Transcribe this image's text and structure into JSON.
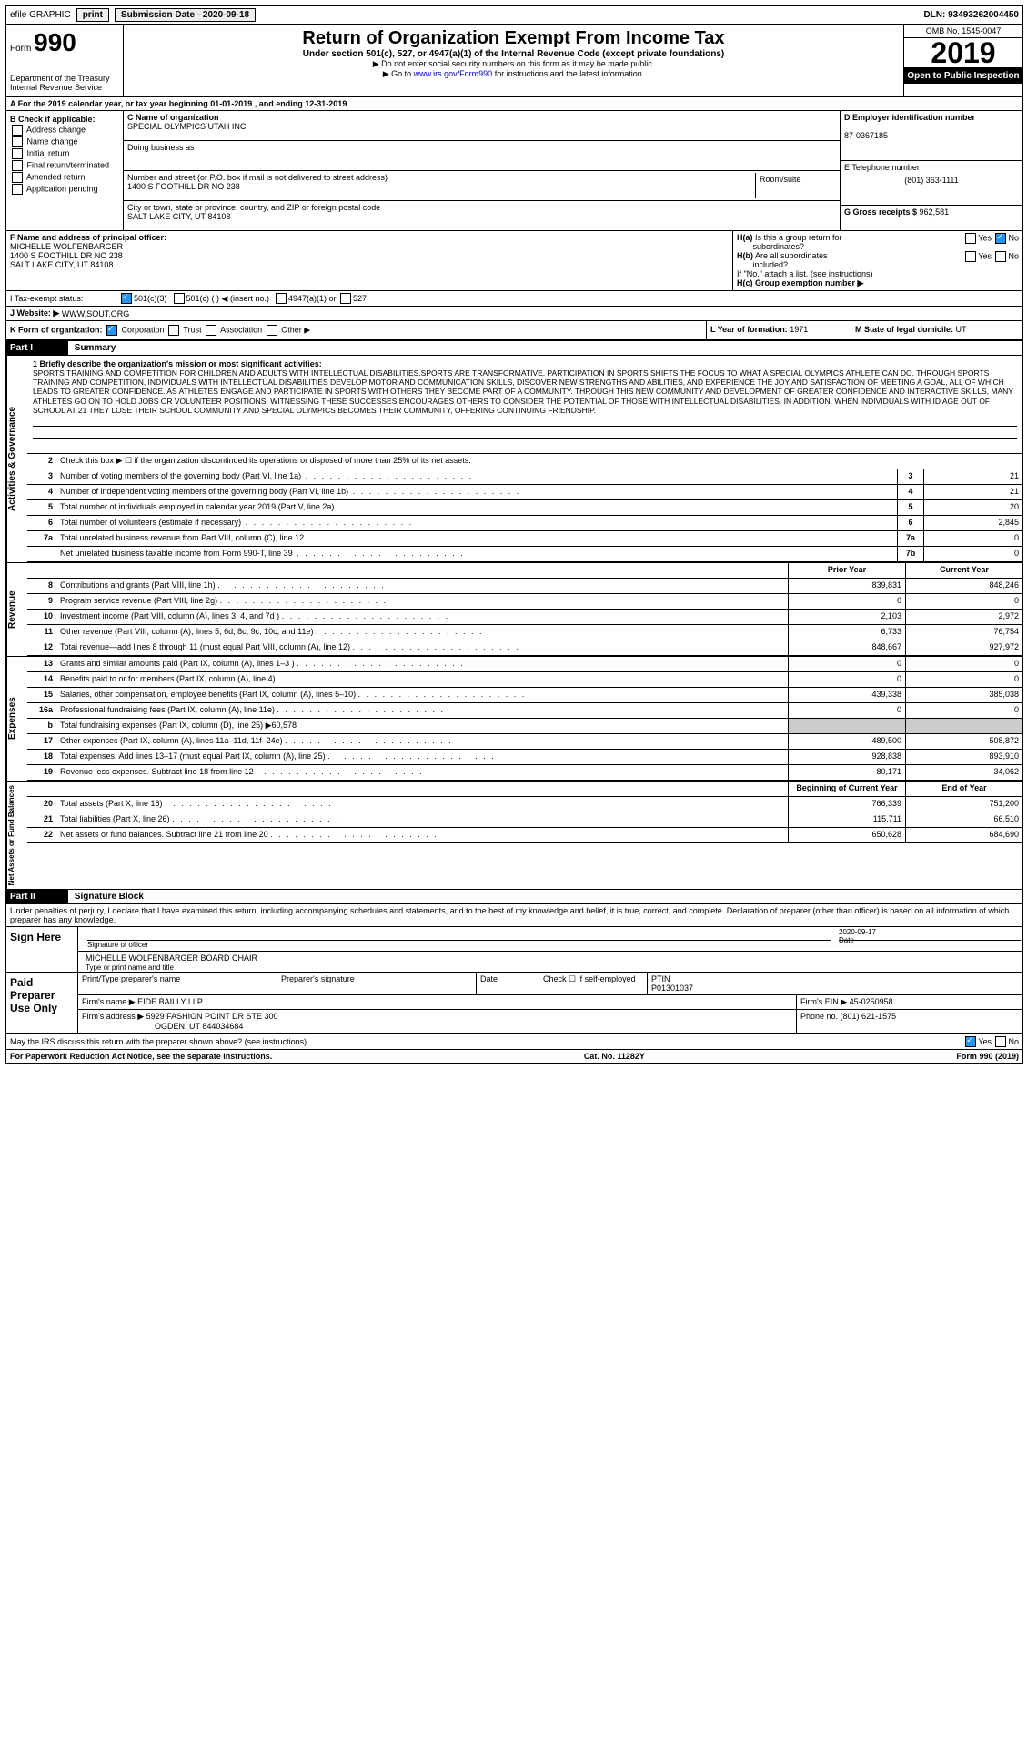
{
  "topbar": {
    "efile": "efile GRAPHIC",
    "print": "print",
    "sub_label": "Submission Date - ",
    "sub_date": "2020-09-18",
    "dln_label": "DLN: ",
    "dln": "93493262004450"
  },
  "header": {
    "form_prefix": "Form",
    "form_no": "990",
    "dept": "Department of the Treasury",
    "irs": "Internal Revenue Service",
    "title": "Return of Organization Exempt From Income Tax",
    "subtitle": "Under section 501(c), 527, or 4947(a)(1) of the Internal Revenue Code (except private foundations)",
    "note1": "▶ Do not enter social security numbers on this form as it may be made public.",
    "note2": "▶ Go to www.irs.gov/Form990 for instructions and the latest information.",
    "link": "www.irs.gov/Form990",
    "omb": "OMB No. 1545-0047",
    "year": "2019",
    "open": "Open to Public Inspection"
  },
  "section_a": "A For the 2019 calendar year, or tax year beginning 01-01-2019 , and ending 12-31-2019",
  "box_b": {
    "label": "B Check if applicable:",
    "items": [
      "Address change",
      "Name change",
      "Initial return",
      "Final return/terminated",
      "Amended return",
      "Application pending"
    ]
  },
  "box_c": {
    "name_label": "C Name of organization",
    "name": "SPECIAL OLYMPICS UTAH INC",
    "dba_label": "Doing business as",
    "addr_label": "Number and street (or P.O. box if mail is not delivered to street address)",
    "addr": "1400 S FOOTHILL DR NO 238",
    "room_label": "Room/suite",
    "city_label": "City or town, state or province, country, and ZIP or foreign postal code",
    "city": "SALT LAKE CITY, UT  84108"
  },
  "box_d": {
    "ein_label": "D Employer identification number",
    "ein": "87-0367185"
  },
  "box_e": {
    "tel_label": "E Telephone number",
    "tel": "(801) 363-1111"
  },
  "box_g": {
    "label": "G Gross receipts $ ",
    "value": "962,581"
  },
  "box_f": {
    "label": "F Name and address of principal officer:",
    "name": "MICHELLE WOLFENBARGER",
    "addr1": "1400 S FOOTHILL DR NO 238",
    "addr2": "SALT LAKE CITY, UT  84108"
  },
  "box_h": {
    "ha_label": "H(a) Is this a group return for subordinates?",
    "hb_label": "H(b) Are all subordinates included?",
    "h_note": "If \"No,\" attach a list. (see instructions)",
    "hc_label": "H(c) Group exemption number ▶",
    "yes": "Yes",
    "no": "No"
  },
  "row_i": {
    "label": "I Tax-exempt status:",
    "opt1": "501(c)(3)",
    "opt2": "501(c) (  ) ◀ (insert no.)",
    "opt3": "4947(a)(1) or",
    "opt4": "527"
  },
  "row_j": {
    "label": "J Website: ▶",
    "value": "WWW.SOUT.ORG"
  },
  "row_k": {
    "label": "K Form of organization:",
    "corp": "Corporation",
    "trust": "Trust",
    "assoc": "Association",
    "other": "Other ▶",
    "l_label": "L Year of formation: ",
    "l_val": "1971",
    "m_label": "M State of legal domicile: ",
    "m_val": "UT"
  },
  "part1": {
    "header": "Part I",
    "title": "Summary",
    "q1_label": "1 Briefly describe the organization's mission or most significant activities:",
    "mission": "SPORTS TRAINING AND COMPETITION FOR CHILDREN AND ADULTS WITH INTELLECTUAL DISABILITIES.SPORTS ARE TRANSFORMATIVE. PARTICIPATION IN SPORTS SHIFTS THE FOCUS TO WHAT A SPECIAL OLYMPICS ATHLETE CAN DO. THROUGH SPORTS TRAINING AND COMPETITION, INDIVIDUALS WITH INTELLECTUAL DISABILITIES DEVELOP MOTOR AND COMMUNICATION SKILLS, DISCOVER NEW STRENGTHS AND ABILITIES, AND EXPERIENCE THE JOY AND SATISFACTION OF MEETING A GOAL, ALL OF WHICH LEADS TO GREATER CONFIDENCE. AS ATHLETES ENGAGE AND PARTICIPATE IN SPORTS WITH OTHERS THEY BECOME PART OF A COMMUNITY. THROUGH THIS NEW COMMUNITY AND DEVELOPMENT OF GREATER CONFIDENCE AND INTERACTIVE SKILLS, MANY ATHLETES GO ON TO HOLD JOBS OR VOLUNTEER POSITIONS. WITNESSING THESE SUCCESSES ENCOURAGES OTHERS TO CONSIDER THE POTENTIAL OF THOSE WITH INTELLECTUAL DISABILITIES. IN ADDITION, WHEN INDIVIDUALS WITH ID AGE OUT OF SCHOOL AT 21 THEY LOSE THEIR SCHOOL COMMUNITY AND SPECIAL OLYMPICS BECOMES THEIR COMMUNITY, OFFERING CONTINUING FRIENDSHIP.",
    "q2": "Check this box ▶ ☐ if the organization discontinued its operations or disposed of more than 25% of its net assets.",
    "lines_ag": [
      {
        "n": "3",
        "label": "Number of voting members of the governing body (Part VI, line 1a)",
        "key": "3",
        "val": "21"
      },
      {
        "n": "4",
        "label": "Number of independent voting members of the governing body (Part VI, line 1b)",
        "key": "4",
        "val": "21"
      },
      {
        "n": "5",
        "label": "Total number of individuals employed in calendar year 2019 (Part V, line 2a)",
        "key": "5",
        "val": "20"
      },
      {
        "n": "6",
        "label": "Total number of volunteers (estimate if necessary)",
        "key": "6",
        "val": "2,845"
      },
      {
        "n": "7a",
        "label": "Total unrelated business revenue from Part VIII, column (C), line 12",
        "key": "7a",
        "val": "0"
      },
      {
        "n": "",
        "label": "Net unrelated business taxable income from Form 990-T, line 39",
        "key": "7b",
        "val": "0"
      }
    ],
    "side_ag": "Activities & Governance",
    "side_rev": "Revenue",
    "side_exp": "Expenses",
    "side_net": "Net Assets or Fund Balances",
    "prior_hdr": "Prior Year",
    "current_hdr": "Current Year",
    "rev_lines": [
      {
        "n": "8",
        "label": "Contributions and grants (Part VIII, line 1h)",
        "prior": "839,831",
        "curr": "848,246"
      },
      {
        "n": "9",
        "label": "Program service revenue (Part VIII, line 2g)",
        "prior": "0",
        "curr": "0"
      },
      {
        "n": "10",
        "label": "Investment income (Part VIII, column (A), lines 3, 4, and 7d )",
        "prior": "2,103",
        "curr": "2,972"
      },
      {
        "n": "11",
        "label": "Other revenue (Part VIII, column (A), lines 5, 6d, 8c, 9c, 10c, and 11e)",
        "prior": "6,733",
        "curr": "76,754"
      },
      {
        "n": "12",
        "label": "Total revenue—add lines 8 through 11 (must equal Part VIII, column (A), line 12)",
        "prior": "848,667",
        "curr": "927,972"
      }
    ],
    "exp_lines": [
      {
        "n": "13",
        "label": "Grants and similar amounts paid (Part IX, column (A), lines 1–3 )",
        "prior": "0",
        "curr": "0"
      },
      {
        "n": "14",
        "label": "Benefits paid to or for members (Part IX, column (A), line 4)",
        "prior": "0",
        "curr": "0"
      },
      {
        "n": "15",
        "label": "Salaries, other compensation, employee benefits (Part IX, column (A), lines 5–10)",
        "prior": "439,338",
        "curr": "385,038"
      },
      {
        "n": "16a",
        "label": "Professional fundraising fees (Part IX, column (A), line 11e)",
        "prior": "0",
        "curr": "0"
      },
      {
        "n": "b",
        "label": "Total fundraising expenses (Part IX, column (D), line 25) ▶60,578",
        "prior": "",
        "curr": "",
        "grey": true
      },
      {
        "n": "17",
        "label": "Other expenses (Part IX, column (A), lines 11a–11d, 11f–24e)",
        "prior": "489,500",
        "curr": "508,872"
      },
      {
        "n": "18",
        "label": "Total expenses. Add lines 13–17 (must equal Part IX, column (A), line 25)",
        "prior": "928,838",
        "curr": "893,910"
      },
      {
        "n": "19",
        "label": "Revenue less expenses. Subtract line 18 from line 12",
        "prior": "-80,171",
        "curr": "34,062"
      }
    ],
    "begin_hdr": "Beginning of Current Year",
    "end_hdr": "End of Year",
    "net_lines": [
      {
        "n": "20",
        "label": "Total assets (Part X, line 16)",
        "prior": "766,339",
        "curr": "751,200"
      },
      {
        "n": "21",
        "label": "Total liabilities (Part X, line 26)",
        "prior": "115,711",
        "curr": "66,510"
      },
      {
        "n": "22",
        "label": "Net assets or fund balances. Subtract line 21 from line 20",
        "prior": "650,628",
        "curr": "684,690"
      }
    ]
  },
  "part2": {
    "header": "Part II",
    "title": "Signature Block",
    "decl": "Under penalties of perjury, I declare that I have examined this return, including accompanying schedules and statements, and to the best of my knowledge and belief, it is true, correct, and complete. Declaration of preparer (other than officer) is based on all information of which preparer has any knowledge.",
    "sign_here": "Sign Here",
    "sig_officer": "Signature of officer",
    "date_label": "Date",
    "sig_date": "2020-09-17",
    "officer_name": "MICHELLE WOLFENBARGER  BOARD CHAIR",
    "type_label": "Type or print name and title",
    "paid_prep": "Paid Preparer Use Only",
    "prep_name_label": "Print/Type preparer's name",
    "prep_sig_label": "Preparer's signature",
    "check_self": "Check ☐ if self-employed",
    "ptin_label": "PTIN",
    "ptin": "P01301037",
    "firm_name_label": "Firm's name ▶ ",
    "firm_name": "EIDE BAILLY LLP",
    "firm_ein_label": "Firm's EIN ▶ ",
    "firm_ein": "45-0250958",
    "firm_addr_label": "Firm's address ▶ ",
    "firm_addr1": "5929 FASHION POINT DR STE 300",
    "firm_addr2": "OGDEN, UT  844034684",
    "phone_label": "Phone no. ",
    "phone": "(801) 621-1575",
    "discuss": "May the IRS discuss this return with the preparer shown above? (see instructions)",
    "yes": "Yes",
    "no": "No"
  },
  "footer": {
    "left": "For Paperwork Reduction Act Notice, see the separate instructions.",
    "mid": "Cat. No. 11282Y",
    "right": "Form 990 (2019)"
  }
}
